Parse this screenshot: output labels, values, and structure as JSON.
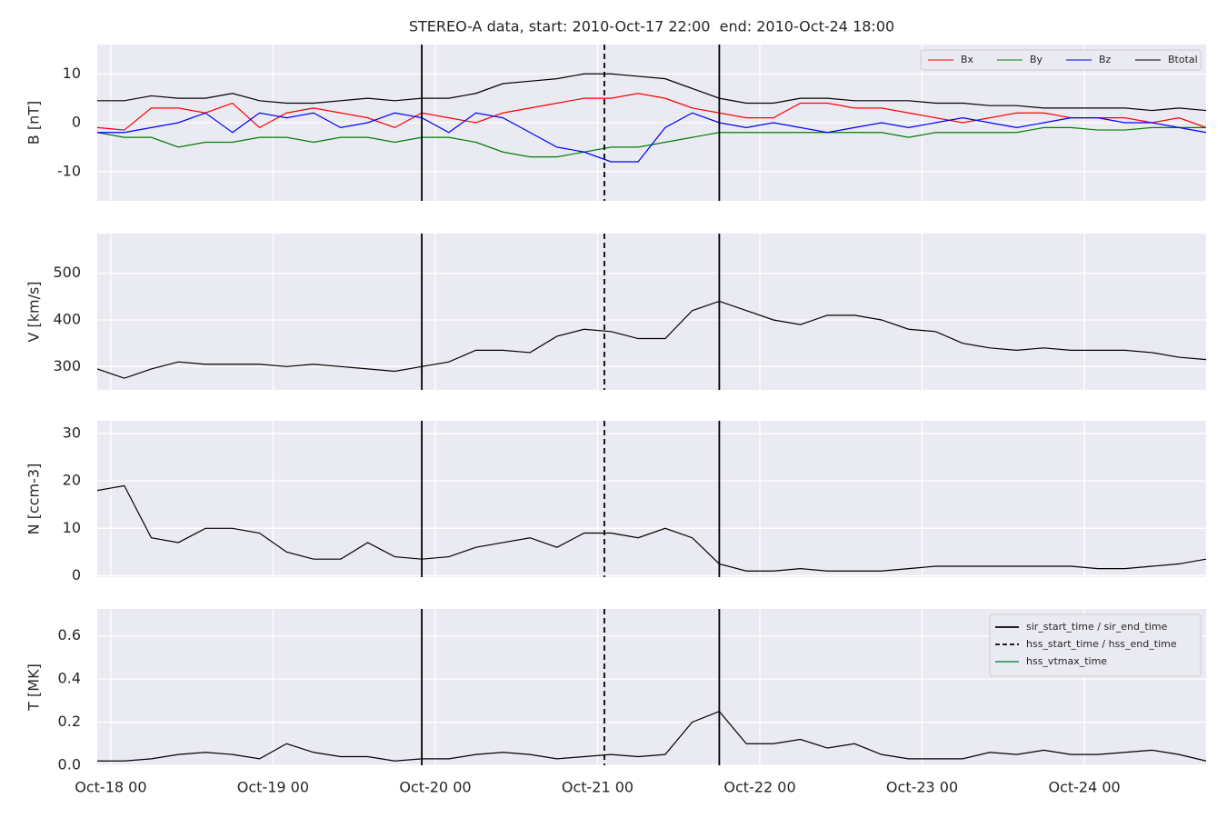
{
  "chart_data": [
    {
      "type": "line",
      "title": "STEREO-A data, start: 2010-Oct-17 22:00  end: 2010-Oct-24 18:00",
      "ylabel": "B [nT]",
      "x": [
        "Oct-17 22",
        "Oct-18 02",
        "Oct-18 06",
        "Oct-18 10",
        "Oct-18 14",
        "Oct-18 18",
        "Oct-18 22",
        "Oct-19 02",
        "Oct-19 06",
        "Oct-19 10",
        "Oct-19 14",
        "Oct-19 18",
        "Oct-19 22",
        "Oct-20 02",
        "Oct-20 06",
        "Oct-20 10",
        "Oct-20 14",
        "Oct-20 18",
        "Oct-20 22",
        "Oct-21 02",
        "Oct-21 06",
        "Oct-21 10",
        "Oct-21 14",
        "Oct-21 18",
        "Oct-21 22",
        "Oct-22 02",
        "Oct-22 06",
        "Oct-22 10",
        "Oct-22 14",
        "Oct-22 18",
        "Oct-22 22",
        "Oct-23 02",
        "Oct-23 06",
        "Oct-23 10",
        "Oct-23 14",
        "Oct-23 18",
        "Oct-23 22",
        "Oct-24 02",
        "Oct-24 06",
        "Oct-24 10",
        "Oct-24 14",
        "Oct-24 18"
      ],
      "xlim": [
        "Oct-17 22",
        "Oct-24 18"
      ],
      "xticks": [
        "Oct-18 00",
        "Oct-19 00",
        "Oct-20 00",
        "Oct-21 00",
        "Oct-22 00",
        "Oct-23 00",
        "Oct-24 00"
      ],
      "ylim": [
        -16,
        16
      ],
      "yticks": [
        -10,
        0,
        10
      ],
      "grid": true,
      "legend": "upper right",
      "series": [
        {
          "name": "Bx",
          "color": "#ff0000",
          "values": [
            -1,
            -1.5,
            3,
            3,
            2,
            4,
            -1,
            2,
            3,
            2,
            1,
            -1,
            2,
            1,
            0,
            2,
            3,
            4,
            5,
            5,
            6,
            5,
            3,
            2,
            1,
            1,
            4,
            4,
            3,
            3,
            2,
            1,
            0,
            1,
            2,
            2,
            1,
            1,
            1,
            0,
            1,
            -1
          ]
        },
        {
          "name": "By",
          "color": "#008000",
          "values": [
            -2,
            -3,
            -3,
            -5,
            -4,
            -4,
            -3,
            -3,
            -4,
            -3,
            -3,
            -4,
            -3,
            -3,
            -4,
            -6,
            -7,
            -7,
            -6,
            -5,
            -5,
            -4,
            -3,
            -2,
            -2,
            -2,
            -2,
            -2,
            -2,
            -2,
            -3,
            -2,
            -2,
            -2,
            -2,
            -1,
            -1,
            -1.5,
            -1.5,
            -1,
            -1,
            -1
          ]
        },
        {
          "name": "Bz",
          "color": "#0000ff",
          "values": [
            -2,
            -2,
            -1,
            0,
            2,
            -2,
            2,
            1,
            2,
            -1,
            0,
            2,
            1,
            -2,
            2,
            1,
            -2,
            -5,
            -6,
            -8,
            -8,
            -1,
            2,
            0,
            -1,
            0,
            -1,
            -2,
            -1,
            0,
            -1,
            0,
            1,
            0,
            -1,
            0,
            1,
            1,
            0,
            0,
            -1,
            -2
          ]
        },
        {
          "name": "Btotal",
          "color": "#000000",
          "values": [
            4.5,
            4.5,
            5.5,
            5,
            5,
            6,
            4.5,
            4,
            4,
            4.5,
            5,
            4.5,
            5,
            5,
            6,
            8,
            8.5,
            9,
            10,
            10,
            9.5,
            9,
            7,
            5,
            4,
            4,
            5,
            5,
            4.5,
            4.5,
            4.5,
            4,
            4,
            3.5,
            3.5,
            3,
            3,
            3,
            3,
            2.5,
            3,
            2.5
          ]
        }
      ]
    },
    {
      "type": "line",
      "ylabel": "V [km/s]",
      "x": [
        "Oct-17 22",
        "Oct-18 02",
        "Oct-18 06",
        "Oct-18 10",
        "Oct-18 14",
        "Oct-18 18",
        "Oct-18 22",
        "Oct-19 02",
        "Oct-19 06",
        "Oct-19 10",
        "Oct-19 14",
        "Oct-19 18",
        "Oct-19 22",
        "Oct-20 02",
        "Oct-20 06",
        "Oct-20 10",
        "Oct-20 14",
        "Oct-20 18",
        "Oct-20 22",
        "Oct-21 02",
        "Oct-21 06",
        "Oct-21 10",
        "Oct-21 14",
        "Oct-21 18",
        "Oct-21 22",
        "Oct-22 02",
        "Oct-22 06",
        "Oct-22 10",
        "Oct-22 14",
        "Oct-22 18",
        "Oct-22 22",
        "Oct-23 02",
        "Oct-23 06",
        "Oct-23 10",
        "Oct-23 14",
        "Oct-23 18",
        "Oct-23 22",
        "Oct-24 02",
        "Oct-24 06",
        "Oct-24 10",
        "Oct-24 14",
        "Oct-24 18"
      ],
      "xlim": [
        "Oct-17 22",
        "Oct-24 18"
      ],
      "xticks": [
        "Oct-18 00",
        "Oct-19 00",
        "Oct-20 00",
        "Oct-21 00",
        "Oct-22 00",
        "Oct-23 00",
        "Oct-24 00"
      ],
      "ylim": [
        250,
        585
      ],
      "yticks": [
        300,
        400,
        500
      ],
      "grid": true,
      "series": [
        {
          "color": "#000000",
          "values": [
            295,
            275,
            295,
            310,
            305,
            305,
            305,
            300,
            305,
            300,
            295,
            290,
            300,
            310,
            335,
            335,
            330,
            365,
            380,
            375,
            360,
            360,
            420,
            440,
            420,
            400,
            390,
            410,
            410,
            400,
            380,
            375,
            350,
            340,
            335,
            340,
            335,
            335,
            335,
            330,
            320,
            315
          ]
        }
      ]
    },
    {
      "type": "line",
      "ylabel": "N [ccm-3]",
      "x": [
        "Oct-17 22",
        "Oct-18 02",
        "Oct-18 06",
        "Oct-18 10",
        "Oct-18 14",
        "Oct-18 18",
        "Oct-18 22",
        "Oct-19 02",
        "Oct-19 06",
        "Oct-19 10",
        "Oct-19 14",
        "Oct-19 18",
        "Oct-19 22",
        "Oct-20 02",
        "Oct-20 06",
        "Oct-20 10",
        "Oct-20 14",
        "Oct-20 18",
        "Oct-20 22",
        "Oct-21 02",
        "Oct-21 06",
        "Oct-21 10",
        "Oct-21 14",
        "Oct-21 18",
        "Oct-21 22",
        "Oct-22 02",
        "Oct-22 06",
        "Oct-22 10",
        "Oct-22 14",
        "Oct-22 18",
        "Oct-22 22",
        "Oct-23 02",
        "Oct-23 06",
        "Oct-23 10",
        "Oct-23 14",
        "Oct-23 18",
        "Oct-23 22",
        "Oct-24 02",
        "Oct-24 06",
        "Oct-24 10",
        "Oct-24 14",
        "Oct-24 18"
      ],
      "xlim": [
        "Oct-17 22",
        "Oct-24 18"
      ],
      "xticks": [
        "Oct-18 00",
        "Oct-19 00",
        "Oct-20 00",
        "Oct-21 00",
        "Oct-22 00",
        "Oct-23 00",
        "Oct-24 00"
      ],
      "ylim": [
        -0.3,
        32.7
      ],
      "yticks": [
        0,
        10,
        20,
        30
      ],
      "grid": true,
      "series": [
        {
          "color": "#000000",
          "values": [
            18,
            19,
            8,
            7,
            10,
            10,
            9,
            5,
            3.5,
            3.5,
            7,
            4,
            3.5,
            4,
            6,
            7,
            8,
            6,
            9,
            9,
            8,
            10,
            8,
            2.5,
            1,
            1,
            1.5,
            1,
            1,
            1,
            1.5,
            2,
            2,
            2,
            2,
            2,
            2,
            1.5,
            1.5,
            2,
            2.5,
            3.5
          ]
        }
      ]
    },
    {
      "type": "line",
      "ylabel": "T [MK]",
      "x": [
        "Oct-17 22",
        "Oct-18 02",
        "Oct-18 06",
        "Oct-18 10",
        "Oct-18 14",
        "Oct-18 18",
        "Oct-18 22",
        "Oct-19 02",
        "Oct-19 06",
        "Oct-19 10",
        "Oct-19 14",
        "Oct-19 18",
        "Oct-19 22",
        "Oct-20 02",
        "Oct-20 06",
        "Oct-20 10",
        "Oct-20 14",
        "Oct-20 18",
        "Oct-20 22",
        "Oct-21 02",
        "Oct-21 06",
        "Oct-21 10",
        "Oct-21 14",
        "Oct-21 18",
        "Oct-21 22",
        "Oct-22 02",
        "Oct-22 06",
        "Oct-22 10",
        "Oct-22 14",
        "Oct-22 18",
        "Oct-22 22",
        "Oct-23 02",
        "Oct-23 06",
        "Oct-23 10",
        "Oct-23 14",
        "Oct-23 18",
        "Oct-23 22",
        "Oct-24 02",
        "Oct-24 06",
        "Oct-24 10",
        "Oct-24 14",
        "Oct-24 18"
      ],
      "xlim": [
        "Oct-17 22",
        "Oct-24 18"
      ],
      "xticks": [
        "Oct-18 00",
        "Oct-19 00",
        "Oct-20 00",
        "Oct-21 00",
        "Oct-22 00",
        "Oct-23 00",
        "Oct-24 00"
      ],
      "ylim": [
        0,
        0.725
      ],
      "yticks": [
        {
          "value": 0,
          "label": "0.0"
        },
        0.2,
        0.4,
        0.6
      ],
      "grid": true,
      "legend": "upper right",
      "series": [
        {
          "color": "#000000",
          "values": [
            0.02,
            0.02,
            0.03,
            0.05,
            0.06,
            0.05,
            0.03,
            0.1,
            0.06,
            0.04,
            0.04,
            0.02,
            0.03,
            0.03,
            0.05,
            0.06,
            0.05,
            0.03,
            0.04,
            0.05,
            0.04,
            0.05,
            0.2,
            0.25,
            0.1,
            0.1,
            0.12,
            0.08,
            0.1,
            0.05,
            0.03,
            0.03,
            0.03,
            0.06,
            0.05,
            0.07,
            0.05,
            0.05,
            0.06,
            0.07,
            0.05,
            0.02
          ]
        }
      ],
      "events": [
        {
          "name": "sir_start_time / sir_end_time",
          "color": "#000000",
          "style": "solid",
          "x": [
            "Oct-19 22",
            "Oct-21 18"
          ]
        },
        {
          "name": "hss_start_time / hss_end_time",
          "color": "#000000",
          "style": "dashed",
          "x": [
            "Oct-21 01"
          ]
        },
        {
          "name": "hss_vtmax_time",
          "color": "#2ca25f",
          "style": "solid",
          "x": []
        }
      ]
    }
  ]
}
